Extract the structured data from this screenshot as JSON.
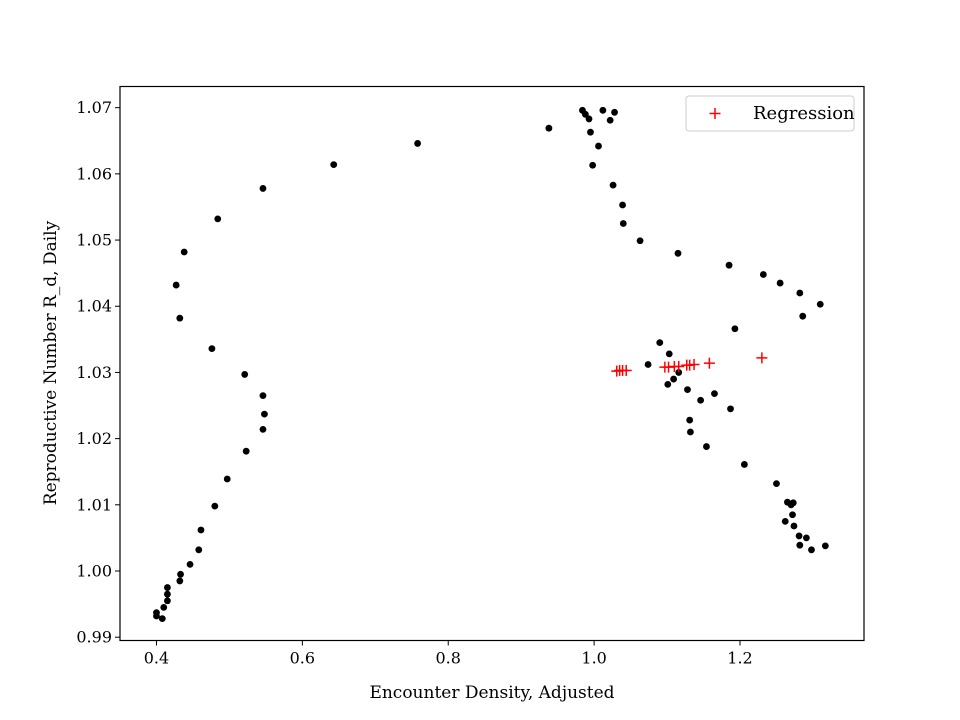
{
  "chart_data": {
    "type": "scatter",
    "title": "",
    "xlabel": "Encounter Density, Adjusted",
    "ylabel": "Reproductive Number R_d, Daily",
    "xlim": [
      0.35,
      1.37
    ],
    "ylim": [
      0.9895,
      1.0732
    ],
    "xticks": [
      0.4,
      0.6,
      0.8,
      1.0,
      1.2
    ],
    "xtick_labels": [
      "0.4",
      "0.6",
      "0.8",
      "1.0",
      "1.2"
    ],
    "yticks": [
      0.99,
      1.0,
      1.01,
      1.02,
      1.03,
      1.04,
      1.05,
      1.06,
      1.07
    ],
    "ytick_labels": [
      "0.99",
      "1.00",
      "1.01",
      "1.02",
      "1.03",
      "1.04",
      "1.05",
      "1.06",
      "1.07"
    ],
    "grid": false,
    "legend": {
      "position": "top-right",
      "entries": [
        "Regression"
      ]
    },
    "series": [
      {
        "marker": "dot",
        "color": "#000000",
        "points": [
          [
            0.4,
            0.9937
          ],
          [
            0.4,
            0.9932
          ],
          [
            0.408,
            0.9928
          ],
          [
            0.41,
            0.9945
          ],
          [
            0.415,
            0.9955
          ],
          [
            0.415,
            0.9965
          ],
          [
            0.415,
            0.9975
          ],
          [
            0.432,
            0.9985
          ],
          [
            0.433,
            0.9995
          ],
          [
            0.446,
            1.001
          ],
          [
            0.458,
            1.0032
          ],
          [
            0.461,
            1.0062
          ],
          [
            0.48,
            1.0098
          ],
          [
            0.497,
            1.0139
          ],
          [
            0.523,
            1.0181
          ],
          [
            0.546,
            1.0214
          ],
          [
            0.548,
            1.0237
          ],
          [
            0.546,
            1.0265
          ],
          [
            0.521,
            1.0297
          ],
          [
            0.476,
            1.0336
          ],
          [
            0.432,
            1.0382
          ],
          [
            0.427,
            1.0432
          ],
          [
            0.438,
            1.0482
          ],
          [
            0.484,
            1.0532
          ],
          [
            0.546,
            1.0578
          ],
          [
            0.643,
            1.0614
          ],
          [
            0.758,
            1.0646
          ],
          [
            0.938,
            1.0669
          ],
          [
            0.984,
            1.0696
          ],
          [
            0.988,
            1.069
          ],
          [
            0.993,
            1.0683
          ],
          [
            1.012,
            1.0696
          ],
          [
            1.022,
            1.0681
          ],
          [
            1.028,
            1.0693
          ],
          [
            0.995,
            1.0663
          ],
          [
            1.006,
            1.0642
          ],
          [
            0.998,
            1.0613
          ],
          [
            1.026,
            1.0583
          ],
          [
            1.039,
            1.0553
          ],
          [
            1.04,
            1.0525
          ],
          [
            1.063,
            1.0499
          ],
          [
            1.115,
            1.048
          ],
          [
            1.185,
            1.0462
          ],
          [
            1.232,
            1.0448
          ],
          [
            1.255,
            1.0435
          ],
          [
            1.282,
            1.042
          ],
          [
            1.31,
            1.0403
          ],
          [
            1.286,
            1.0385
          ],
          [
            1.193,
            1.0366
          ],
          [
            1.09,
            1.0345
          ],
          [
            1.103,
            1.0328
          ],
          [
            1.074,
            1.0312
          ],
          [
            1.116,
            1.03
          ],
          [
            1.109,
            1.029
          ],
          [
            1.101,
            1.0282
          ],
          [
            1.128,
            1.0274
          ],
          [
            1.165,
            1.0268
          ],
          [
            1.146,
            1.0258
          ],
          [
            1.187,
            1.0245
          ],
          [
            1.131,
            1.0228
          ],
          [
            1.132,
            1.021
          ],
          [
            1.154,
            1.0188
          ],
          [
            1.206,
            1.0161
          ],
          [
            1.25,
            1.0132
          ],
          [
            1.265,
            1.0104
          ],
          [
            1.27,
            1.01
          ],
          [
            1.273,
            1.0103
          ],
          [
            1.272,
            1.0085
          ],
          [
            1.262,
            1.0075
          ],
          [
            1.274,
            1.0068
          ],
          [
            1.281,
            1.0053
          ],
          [
            1.291,
            1.005
          ],
          [
            1.282,
            1.0039
          ],
          [
            1.298,
            1.0032
          ],
          [
            1.317,
            1.0038
          ]
        ]
      },
      {
        "name": "Regression",
        "marker": "plus",
        "color": "#ff0000",
        "points": [
          [
            1.031,
            1.0302
          ],
          [
            1.035,
            1.0303
          ],
          [
            1.039,
            1.0303
          ],
          [
            1.044,
            1.0303
          ],
          [
            1.097,
            1.0308
          ],
          [
            1.102,
            1.0308
          ],
          [
            1.11,
            1.0309
          ],
          [
            1.116,
            1.0309
          ],
          [
            1.127,
            1.0311
          ],
          [
            1.131,
            1.0311
          ],
          [
            1.137,
            1.0312
          ],
          [
            1.158,
            1.0314
          ],
          [
            1.23,
            1.0322
          ]
        ]
      }
    ]
  }
}
